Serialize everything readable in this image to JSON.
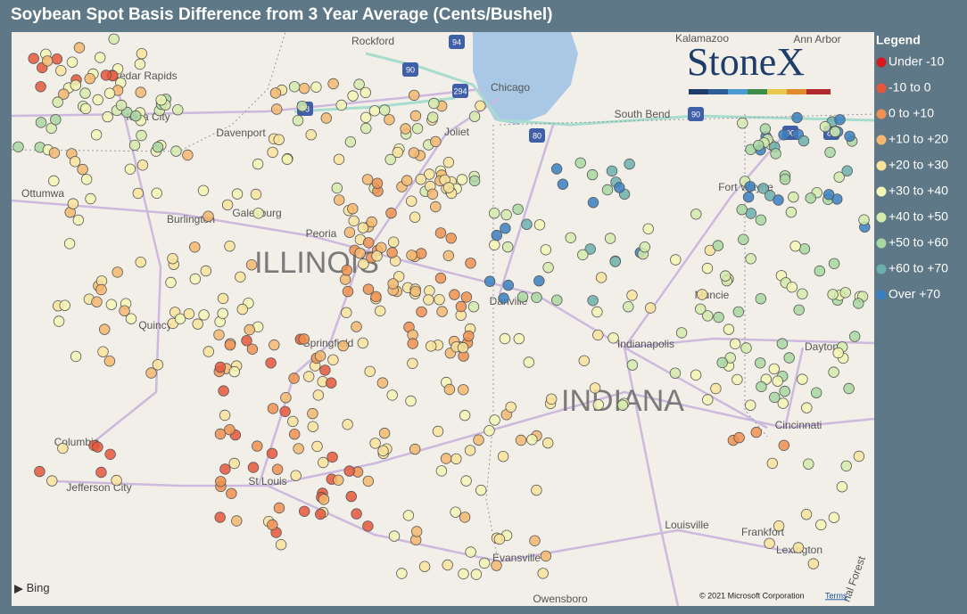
{
  "title": "Soybean Spot Basis Difference from 3 Year Average (Cents/Bushel)",
  "legend": {
    "title": "Legend",
    "items": [
      {
        "label": "Under -10",
        "color": "#d7191c"
      },
      {
        "label": "-10 to 0",
        "color": "#e8573c"
      },
      {
        "label": "0 to +10",
        "color": "#f09050"
      },
      {
        "label": "+10 to +20",
        "color": "#f6b870"
      },
      {
        "label": "+20 to +30",
        "color": "#fbe39c"
      },
      {
        "label": "+30 to +40",
        "color": "#f3f6b4"
      },
      {
        "label": "+40 to +50",
        "color": "#d5ebab"
      },
      {
        "label": "+50 to +60",
        "color": "#a9d7a1"
      },
      {
        "label": "+60 to +70",
        "color": "#6cb0ae"
      },
      {
        "label": "Over +70",
        "color": "#3a7fc1"
      }
    ]
  },
  "logo": "StoneX",
  "map": {
    "cities": [
      "Rockford",
      "Kalamazoo",
      "Ann Arbor",
      "Cedar Rapids",
      "Chicago",
      "Iowa City",
      "South Bend",
      "Davenport",
      "Joliet",
      "Fort Wayne",
      "Ottumwa",
      "Burlington",
      "Galesburg",
      "Peoria",
      "Muncie",
      "Danville",
      "Quincy",
      "Springfield",
      "Indianapolis",
      "Dayton",
      "Columbia",
      "Cincinnati",
      "St Louis",
      "Jefferson City",
      "Louisville",
      "Frankfort",
      "Evansville",
      "Lexington",
      "Owensboro",
      "nal Forest"
    ],
    "states": [
      "ILLINOIS",
      "INDIANA"
    ],
    "highways": [
      "94",
      "90",
      "294",
      "88",
      "80",
      "90",
      "90",
      "80"
    ],
    "provider": "Bing",
    "attribution": "© 2021 Microsoft Corporation",
    "terms": "Terms"
  }
}
